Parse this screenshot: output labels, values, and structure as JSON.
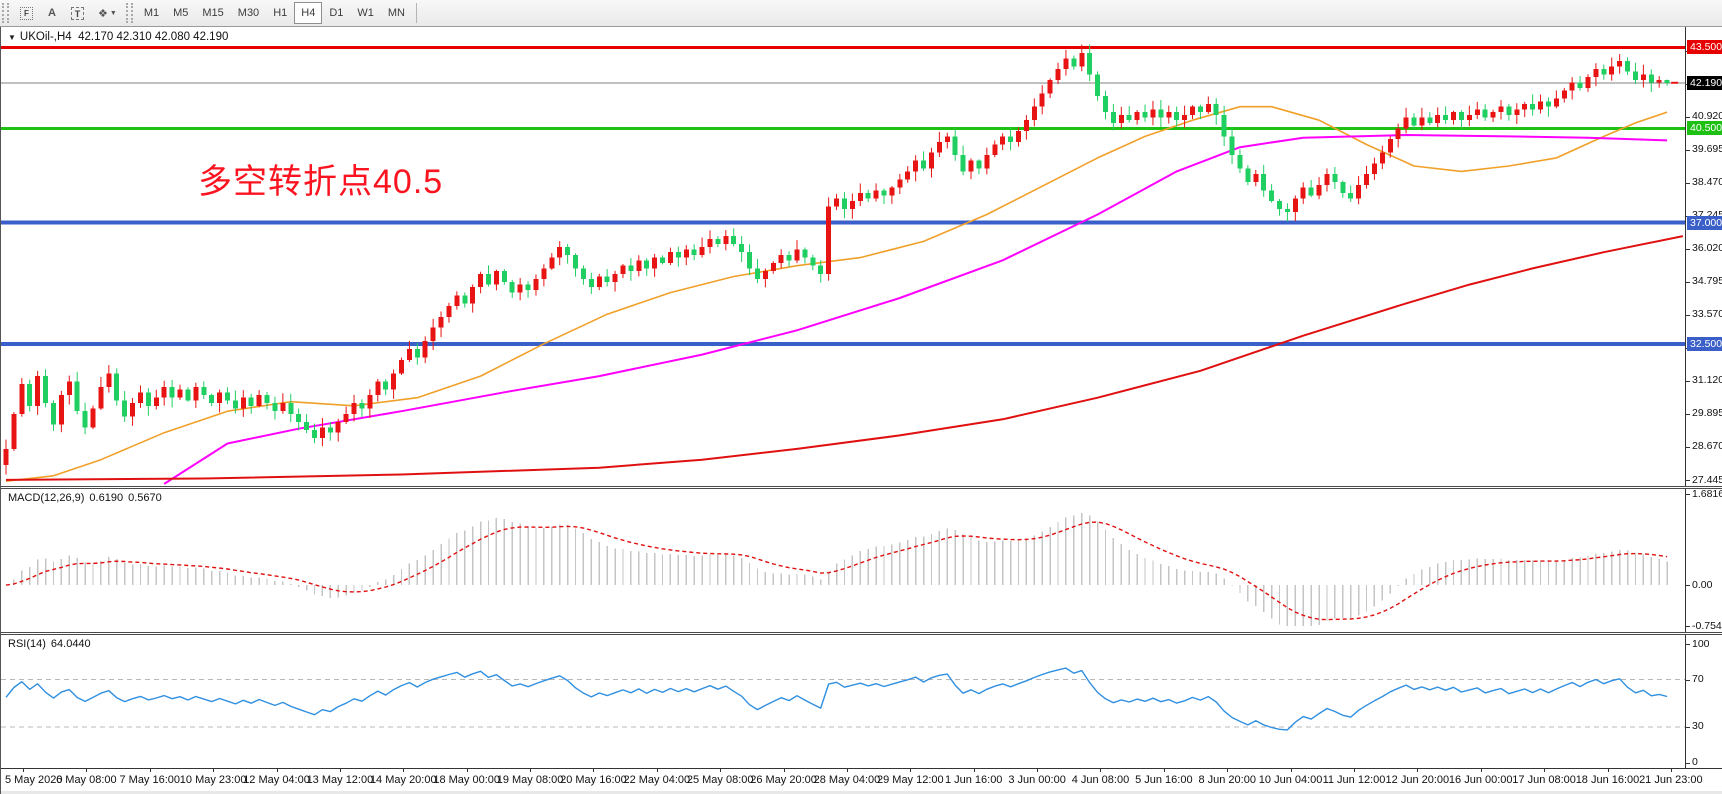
{
  "toolbar": {
    "icons": [
      {
        "name": "template-grid-icon",
        "glyph": "F"
      },
      {
        "name": "text-label-icon",
        "glyph": "A"
      },
      {
        "name": "text-box-icon",
        "glyph": "T"
      },
      {
        "name": "cursor-tool-icon",
        "glyph": "❖"
      },
      {
        "name": "dropdown-caret-icon",
        "glyph": "▼"
      }
    ],
    "timeframes": [
      "M1",
      "M5",
      "M15",
      "M30",
      "H1",
      "H4",
      "D1",
      "W1",
      "MN"
    ],
    "active_timeframe": "H4"
  },
  "chart": {
    "title_symbol": "UKOil-,H4",
    "title_ohlc": "42.170 42.310 42.080 42.190",
    "annotation": "多空转折点40.5"
  },
  "macd": {
    "label": "MACD(12,26,9)",
    "value_text": "0.6190",
    "signal_text": "0.5670"
  },
  "rsi": {
    "label": "RSI(14)",
    "value_text": "64.0440"
  },
  "chart_data": {
    "type": "candlestick",
    "symbol": "UKOil-",
    "timeframe": "H4",
    "title": "UKOil-,H4 42.170 42.310 42.080 42.190",
    "last_bar": {
      "open": 42.17,
      "high": 42.31,
      "low": 42.08,
      "close": 42.19
    },
    "ylim": [
      27.25,
      44.26
    ],
    "first_open": 28.0,
    "closes": [
      28.6,
      29.9,
      31.0,
      30.2,
      31.3,
      30.3,
      29.5,
      30.6,
      31.1,
      30.0,
      29.4,
      30.1,
      30.9,
      31.4,
      30.4,
      29.8,
      30.3,
      30.7,
      30.2,
      30.5,
      30.9,
      30.5,
      30.8,
      30.4,
      30.9,
      30.6,
      30.3,
      30.7,
      30.4,
      30.1,
      30.5,
      30.2,
      30.6,
      30.3,
      30.0,
      30.3,
      29.9,
      29.6,
      29.3,
      29.0,
      29.4,
      29.2,
      29.6,
      29.9,
      30.3,
      30.1,
      30.6,
      31.1,
      30.8,
      31.4,
      31.9,
      32.3,
      32.0,
      32.6,
      33.1,
      33.5,
      33.9,
      34.3,
      34.0,
      34.6,
      35.1,
      34.7,
      35.2,
      34.8,
      34.4,
      34.7,
      34.5,
      34.9,
      35.3,
      35.7,
      36.1,
      35.8,
      35.3,
      34.9,
      34.6,
      35.0,
      34.8,
      35.1,
      35.4,
      35.2,
      35.6,
      35.3,
      35.7,
      35.5,
      35.9,
      35.7,
      36.0,
      35.8,
      36.1,
      36.4,
      36.2,
      36.5,
      36.2,
      35.9,
      35.3,
      34.9,
      35.2,
      35.5,
      35.8,
      35.6,
      36.0,
      35.7,
      35.4,
      35.1,
      37.6,
      37.9,
      37.5,
      37.8,
      38.1,
      37.9,
      38.2,
      38.0,
      38.3,
      38.6,
      38.9,
      39.3,
      39.0,
      39.6,
      40.0,
      40.2,
      39.5,
      38.9,
      39.3,
      39.0,
      39.5,
      39.9,
      40.2,
      40.0,
      40.4,
      40.8,
      41.3,
      41.8,
      42.3,
      42.7,
      43.1,
      42.8,
      43.3,
      42.5,
      41.7,
      41.1,
      40.7,
      41.0,
      40.8,
      41.1,
      40.9,
      41.2,
      40.9,
      41.1,
      40.8,
      41.0,
      41.3,
      41.1,
      41.4,
      41.0,
      40.2,
      39.5,
      39.0,
      38.5,
      38.8,
      38.2,
      37.8,
      37.5,
      37.4,
      37.9,
      38.3,
      38.0,
      38.4,
      38.8,
      38.5,
      38.1,
      37.9,
      38.4,
      38.8,
      39.2,
      39.6,
      40.1,
      40.5,
      40.9,
      40.6,
      40.9,
      40.7,
      41.0,
      40.8,
      41.1,
      40.8,
      41.0,
      41.2,
      40.9,
      41.1,
      41.3,
      41.0,
      41.2,
      41.4,
      41.2,
      41.5,
      41.3,
      41.6,
      41.9,
      42.2,
      42.0,
      42.4,
      42.7,
      42.5,
      42.8,
      43.0,
      42.6,
      42.3,
      42.5,
      42.2,
      42.3,
      42.19
    ],
    "x_labels": [
      "5 May 2020",
      "6 May 08:00",
      "7 May 16:00",
      "10 May 23:00",
      "12 May 04:00",
      "13 May 12:00",
      "14 May 20:00",
      "18 May 00:00",
      "19 May 08:00",
      "20 May 16:00",
      "22 May 04:00",
      "25 May 08:00",
      "26 May 20:00",
      "28 May 04:00",
      "29 May 12:00",
      "1 Jun 16:00",
      "3 Jun 00:00",
      "4 Jun 08:00",
      "5 Jun 16:00",
      "8 Jun 20:00",
      "10 Jun 04:00",
      "11 Jun 12:00",
      "12 Jun 20:00",
      "16 Jun 00:00",
      "17 Jun 08:00",
      "18 Jun 16:00",
      "21 Jun 23:00"
    ],
    "price_ticks": [
      {
        "v": 27.445,
        "t": "27.445"
      },
      {
        "v": 28.67,
        "t": "28.670"
      },
      {
        "v": 29.895,
        "t": "29.895"
      },
      {
        "v": 31.12,
        "t": "31.120"
      },
      {
        "v": 32.345,
        "t": "32.345"
      },
      {
        "v": 33.57,
        "t": "33.570"
      },
      {
        "v": 34.795,
        "t": "34.795"
      },
      {
        "v": 36.02,
        "t": "36.020"
      },
      {
        "v": 37.245,
        "t": "37.245"
      },
      {
        "v": 38.47,
        "t": "38.470"
      },
      {
        "v": 39.695,
        "t": "39.695"
      },
      {
        "v": 40.92,
        "t": "40.920"
      },
      {
        "v": 42.145,
        "t": "42.145"
      },
      {
        "v": 43.37,
        "t": "43.370"
      }
    ],
    "hlines": [
      {
        "price": 43.5,
        "label": "43.500",
        "color": "#e60000",
        "width": 3
      },
      {
        "price": 40.5,
        "label": "40.500",
        "color": "#1ec113",
        "width": 3
      },
      {
        "price": 37.0,
        "label": "37.000",
        "color": "#3a5fc8",
        "width": 4
      },
      {
        "price": 32.5,
        "label": "32.500",
        "color": "#3a5fc8",
        "width": 4
      }
    ],
    "current_price": {
      "value": 42.19,
      "label": "42.190"
    },
    "moving_averages": [
      {
        "name": "ma-fast",
        "color": "#f0a029",
        "width": 1.6,
        "points": [
          [
            0,
            27.4
          ],
          [
            6,
            27.6
          ],
          [
            12,
            28.2
          ],
          [
            20,
            29.2
          ],
          [
            28,
            30.0
          ],
          [
            36,
            30.35
          ],
          [
            44,
            30.2
          ],
          [
            52,
            30.5
          ],
          [
            60,
            31.3
          ],
          [
            68,
            32.5
          ],
          [
            76,
            33.6
          ],
          [
            84,
            34.4
          ],
          [
            92,
            35.0
          ],
          [
            100,
            35.4
          ],
          [
            108,
            35.7
          ],
          [
            116,
            36.3
          ],
          [
            124,
            37.3
          ],
          [
            132,
            38.5
          ],
          [
            138,
            39.4
          ],
          [
            144,
            40.2
          ],
          [
            150,
            40.8
          ],
          [
            156,
            41.3
          ],
          [
            160,
            41.3
          ],
          [
            166,
            40.8
          ],
          [
            172,
            39.9
          ],
          [
            178,
            39.1
          ],
          [
            184,
            38.9
          ],
          [
            190,
            39.1
          ],
          [
            196,
            39.4
          ],
          [
            202,
            40.2
          ],
          [
            206,
            40.7
          ],
          [
            210,
            41.1
          ]
        ]
      },
      {
        "name": "ma-mid",
        "color": "#ff00ff",
        "width": 2,
        "points": [
          [
            20,
            27.3
          ],
          [
            28,
            28.8
          ],
          [
            37,
            29.35
          ],
          [
            50,
            30.0
          ],
          [
            63,
            30.7
          ],
          [
            75,
            31.3
          ],
          [
            88,
            32.1
          ],
          [
            100,
            33.0
          ],
          [
            113,
            34.2
          ],
          [
            126,
            35.6
          ],
          [
            138,
            37.3
          ],
          [
            148,
            38.9
          ],
          [
            156,
            39.8
          ],
          [
            164,
            40.15
          ],
          [
            177,
            40.25
          ],
          [
            190,
            40.2
          ],
          [
            200,
            40.15
          ],
          [
            210,
            40.05
          ]
        ]
      },
      {
        "name": "ma-slow",
        "color": "#e01010",
        "width": 2,
        "points": [
          [
            0,
            27.45
          ],
          [
            25,
            27.5
          ],
          [
            50,
            27.65
          ],
          [
            75,
            27.9
          ],
          [
            88,
            28.2
          ],
          [
            100,
            28.6
          ],
          [
            113,
            29.1
          ],
          [
            126,
            29.7
          ],
          [
            138,
            30.5
          ],
          [
            151,
            31.5
          ],
          [
            164,
            32.8
          ],
          [
            177,
            34.0
          ],
          [
            185,
            34.7
          ],
          [
            193,
            35.3
          ],
          [
            202,
            35.9
          ],
          [
            212,
            36.5
          ]
        ]
      }
    ],
    "macd": {
      "fast": 12,
      "slow": 26,
      "signal": 9,
      "value": 0.619,
      "signal_value": 0.567,
      "ylim": [
        -0.7544,
        1.6816
      ],
      "axis": [
        {
          "v": 1.6816,
          "t": "1.6816"
        },
        {
          "v": 0,
          "t": "0.00"
        },
        {
          "v": -0.7544,
          "t": "-0.7544"
        }
      ]
    },
    "rsi": {
      "period": 14,
      "value": 64.044,
      "levels": [
        70,
        30
      ],
      "axis": [
        {
          "v": 100,
          "t": "100"
        },
        {
          "v": 70,
          "t": "70"
        },
        {
          "v": 30,
          "t": "30"
        },
        {
          "v": 0,
          "t": "0"
        }
      ]
    },
    "colors": {
      "up": "#e81414",
      "down": "#1fcf62",
      "current_line": "#808080",
      "current_badge": "#000000",
      "histogram": "#c4c4c4",
      "signal": "#e01010",
      "rsi_line": "#2f8fe0",
      "level_dash": "#b8b8b8"
    }
  }
}
